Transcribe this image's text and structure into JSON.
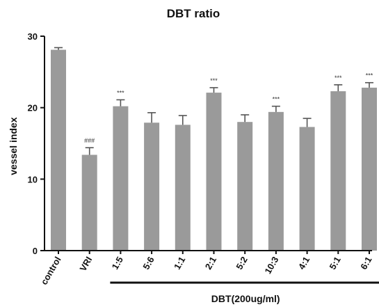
{
  "chart_data": {
    "type": "bar",
    "title": "DBT ratio",
    "ylabel": "vessel index",
    "xlabel": "",
    "ylim": [
      0,
      30
    ],
    "yticks": [
      0,
      10,
      20,
      30
    ],
    "categories": [
      "control",
      "VRI",
      "1:5",
      "5:6",
      "1:1",
      "2:1",
      "5:2",
      "10:3",
      "4:1",
      "5:1",
      "6:1"
    ],
    "values": [
      28.1,
      13.4,
      20.2,
      17.9,
      17.6,
      22.1,
      18.0,
      19.4,
      17.3,
      22.3,
      22.8
    ],
    "errors": [
      0.3,
      1.0,
      0.9,
      1.4,
      1.3,
      0.7,
      1.0,
      0.8,
      1.2,
      0.9,
      0.7
    ],
    "annotations": [
      "",
      "###",
      "***",
      "",
      "",
      "***",
      "",
      "***",
      "",
      "***",
      "***"
    ],
    "group_label": "DBT(200ug/ml)",
    "group_categories": [
      "1:5",
      "5:6",
      "1:1",
      "2:1",
      "5:2",
      "10:3",
      "4:1",
      "5:1",
      "6:1"
    ],
    "colors": {
      "bar": "#9a9a9a",
      "axis": "#111111",
      "error": "#555555"
    }
  }
}
